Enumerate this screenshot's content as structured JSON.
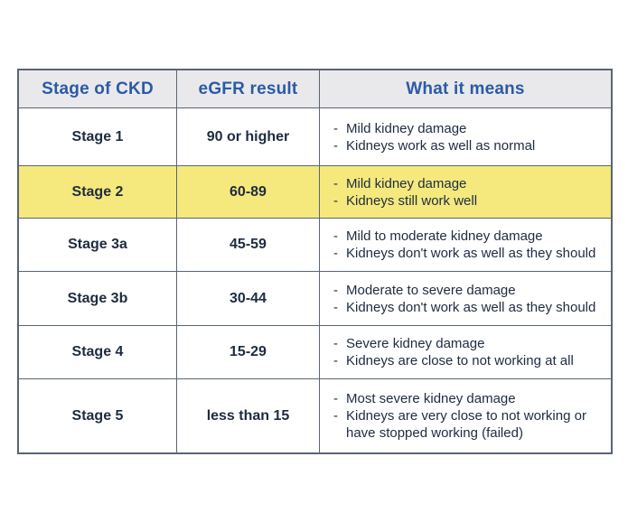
{
  "table": {
    "bullet": "-",
    "highlight_color": "#f5e97d",
    "header_text_color": "#2b5aa6",
    "border_color": "#5a6573",
    "header_bg_color": "#e9e9eb",
    "body_text_color": "#1e2b40",
    "headers": {
      "stage": "Stage of CKD",
      "egfr": "eGFR result",
      "meaning": "What it means"
    },
    "rows": [
      {
        "stage": "Stage 1",
        "egfr": "90 or higher",
        "highlighted": false,
        "meaning": [
          "Mild kidney damage",
          "Kidneys work as well as normal"
        ]
      },
      {
        "stage": "Stage 2",
        "egfr": "60-89",
        "highlighted": true,
        "meaning": [
          "Mild kidney damage",
          "Kidneys still work well"
        ]
      },
      {
        "stage": "Stage 3a",
        "egfr": "45-59",
        "highlighted": false,
        "meaning": [
          "Mild to moderate kidney damage",
          "Kidneys don't work as well as they should"
        ]
      },
      {
        "stage": "Stage 3b",
        "egfr": "30-44",
        "highlighted": false,
        "meaning": [
          "Moderate to severe damage",
          "Kidneys don't work as well as they should"
        ]
      },
      {
        "stage": "Stage 4",
        "egfr": "15-29",
        "highlighted": false,
        "meaning": [
          "Severe kidney damage",
          "Kidneys are close to not working at all"
        ]
      },
      {
        "stage": "Stage 5",
        "egfr": "less than 15",
        "highlighted": false,
        "meaning": [
          "Most severe kidney damage",
          "Kidneys are very close to not working or have stopped working (failed)"
        ]
      }
    ]
  }
}
